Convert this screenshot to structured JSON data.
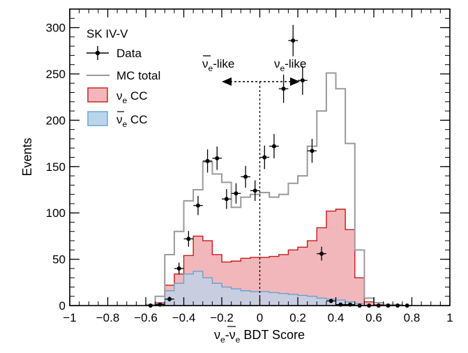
{
  "chart_data": {
    "type": "histogram",
    "label": "SK IV-V",
    "xlabel": "v_e-v̄_e BDT Score",
    "xlabel_parts": {
      "a": "ν",
      "a_sub": "e",
      "dash": "-",
      "b": "ν",
      "b_sub": "e",
      "rest": " BDT Score"
    },
    "ylabel": "Events",
    "xlim": [
      -1,
      1
    ],
    "ylim": [
      0,
      320
    ],
    "x_ticks": [
      -1,
      -0.8,
      -0.6,
      -0.4,
      -0.2,
      0,
      0.2,
      0.4,
      0.6,
      0.8,
      1
    ],
    "x_tick_labels": [
      "−1",
      "−0.8",
      "−0.6",
      "−0.4",
      "−0.2",
      "0",
      "0.2",
      "0.4",
      "0.6",
      "0.8",
      "1"
    ],
    "y_ticks": [
      0,
      50,
      100,
      150,
      200,
      250,
      300
    ],
    "y_tick_labels": [
      "0",
      "50",
      "100",
      "150",
      "200",
      "250",
      "300"
    ],
    "bin_edges": [
      -0.6,
      -0.55,
      -0.5,
      -0.45,
      -0.4,
      -0.35,
      -0.3,
      -0.25,
      -0.2,
      -0.15,
      -0.1,
      -0.05,
      0,
      0.05,
      0.1,
      0.15,
      0.2,
      0.25,
      0.3,
      0.35,
      0.4,
      0.45,
      0.5,
      0.55,
      0.6,
      0.65,
      0.7,
      0.75,
      0.8
    ],
    "series": [
      {
        "name": "MC total",
        "color": "#9a9a9a",
        "values": [
          1,
          10,
          55,
          80,
          113,
          125,
          155,
          142,
          133,
          106,
          117,
          120,
          122,
          117,
          120,
          132,
          140,
          172,
          210,
          251,
          234,
          175,
          60,
          8,
          3,
          1,
          1,
          0
        ]
      },
      {
        "name": "νe CC",
        "color": "#c8191b",
        "fill": "#f2b7bb",
        "values": [
          0,
          3,
          22,
          34,
          54,
          75,
          70,
          55,
          47,
          48,
          51,
          52,
          52,
          53,
          55,
          60,
          63,
          70,
          84,
          102,
          104,
          82,
          30,
          4,
          1,
          0,
          0,
          0
        ]
      },
      {
        "name": "ν̄e CC",
        "color": "#6aa0d2",
        "fill": "#b9d5ec",
        "values": [
          0,
          2,
          16,
          24,
          34,
          37,
          30,
          24,
          20,
          18,
          16,
          15,
          15,
          14,
          13,
          12,
          11,
          10,
          8,
          7,
          6,
          4,
          2,
          0,
          0,
          0,
          0,
          0
        ]
      }
    ],
    "data_points": {
      "name": "Data",
      "x": [
        -0.575,
        -0.525,
        -0.475,
        -0.425,
        -0.375,
        -0.325,
        -0.275,
        -0.225,
        -0.175,
        -0.125,
        -0.075,
        -0.025,
        0.025,
        0.075,
        0.125,
        0.175,
        0.225,
        0.275,
        0.325,
        0.375,
        0.425,
        0.475,
        0.525,
        0.575,
        0.625,
        0.675,
        0.725,
        0.775
      ],
      "y": [
        0,
        1,
        7,
        40,
        72,
        108,
        156,
        159,
        115,
        121,
        139,
        124,
        160,
        172,
        234,
        286,
        243,
        167,
        56,
        5,
        1,
        1,
        0,
        0,
        0,
        0,
        0,
        0
      ]
    },
    "legend": [
      {
        "label": "Data",
        "kind": "marker"
      },
      {
        "label": "MC total",
        "kind": "line"
      },
      {
        "label": "νe CC",
        "label_main": "ν",
        "label_sub": "e",
        "label_rest": " CC",
        "kind": "fill-red"
      },
      {
        "label": "ν̄e CC",
        "label_main": "ν",
        "label_sub": "e",
        "label_rest": " CC",
        "kind": "fill-blue"
      }
    ],
    "annotations": {
      "left_region": {
        "main": "ν",
        "sub": "e",
        "rest": "-like",
        "bar": true
      },
      "right_region": {
        "main": "ν",
        "sub": "e",
        "rest": "-like",
        "bar": false
      },
      "divider_x": 0
    }
  }
}
